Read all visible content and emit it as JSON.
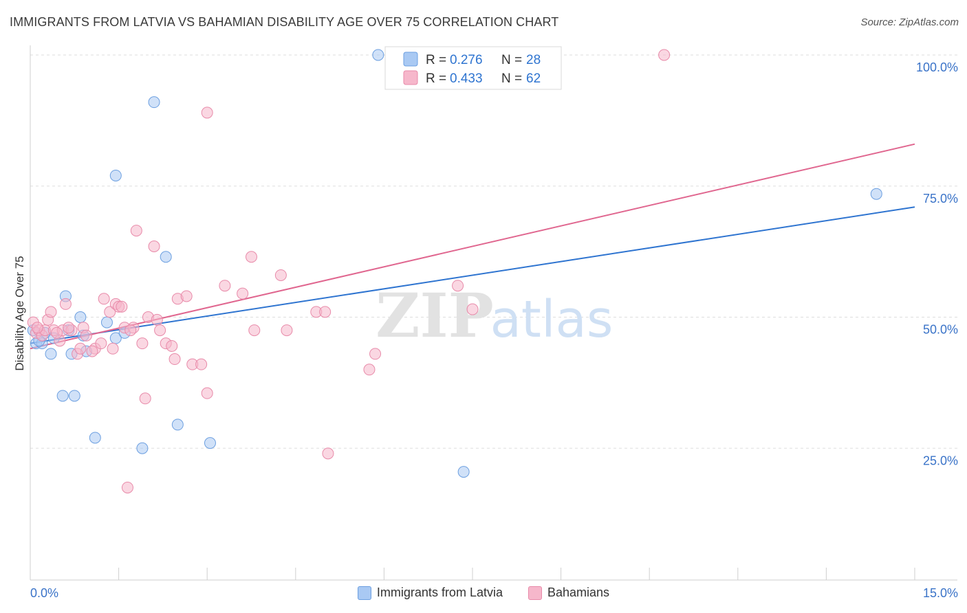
{
  "header": {
    "title": "IMMIGRANTS FROM LATVIA VS BAHAMIAN DISABILITY AGE OVER 75 CORRELATION CHART",
    "source": "Source: ZipAtlas.com"
  },
  "watermark": {
    "zip": "ZIP",
    "atlas": "atlas"
  },
  "colors": {
    "blue_fill": "#a9c9f3",
    "blue_stroke": "#6c9fe0",
    "blue_line": "#2e74d0",
    "pink_fill": "#f6b7cb",
    "pink_stroke": "#e88aa9",
    "pink_line": "#e0668f",
    "tick_label": "#3a73c8",
    "grid": "#dddddd"
  },
  "chart_data": {
    "type": "scatter",
    "title": "IMMIGRANTS FROM LATVIA VS BAHAMIAN DISABILITY AGE OVER 75 CORRELATION CHART",
    "xlabel": "",
    "ylabel": "Disability Age Over 75",
    "xlim": [
      0,
      15
    ],
    "ylim": [
      0,
      102
    ],
    "x_tick_labels": [
      {
        "value": 0,
        "label": "0.0%"
      },
      {
        "value": 15,
        "label": "15.0%"
      }
    ],
    "y_tick_labels": [
      {
        "value": 25,
        "label": "25.0%"
      },
      {
        "value": 50,
        "label": "50.0%"
      },
      {
        "value": 75,
        "label": "75.0%"
      },
      {
        "value": 100,
        "label": "100.0%"
      }
    ],
    "grid": true,
    "legend_position": "top-center",
    "series": [
      {
        "name": "Immigrants from Latvia",
        "color": "blue",
        "r_label": "R =",
        "r_value": "0.276",
        "n_label": "N =",
        "n_value": "28",
        "trend": [
          [
            0,
            45
          ],
          [
            15,
            71
          ]
        ],
        "points": [
          [
            0.05,
            47.5
          ],
          [
            0.1,
            45
          ],
          [
            0.2,
            45
          ],
          [
            0.25,
            47
          ],
          [
            0.35,
            43
          ],
          [
            0.4,
            46
          ],
          [
            0.55,
            35
          ],
          [
            0.6,
            54
          ],
          [
            0.65,
            47.5
          ],
          [
            0.7,
            43
          ],
          [
            0.75,
            35
          ],
          [
            0.85,
            50
          ],
          [
            0.9,
            46.5
          ],
          [
            0.95,
            43.5
          ],
          [
            1.1,
            27
          ],
          [
            1.3,
            49
          ],
          [
            1.45,
            46
          ],
          [
            1.45,
            77
          ],
          [
            1.6,
            47
          ],
          [
            1.9,
            25
          ],
          [
            2.1,
            91
          ],
          [
            2.3,
            61.5
          ],
          [
            2.5,
            29.5
          ],
          [
            3.05,
            26
          ],
          [
            5.9,
            100
          ],
          [
            7.35,
            20.5
          ],
          [
            14.35,
            73.5
          ],
          [
            0.15,
            45.5
          ]
        ]
      },
      {
        "name": "Bahamians",
        "color": "pink",
        "r_label": "R =",
        "r_value": "0.433",
        "n_label": "N =",
        "n_value": "62",
        "trend": [
          [
            0,
            44
          ],
          [
            15,
            83
          ]
        ],
        "points": [
          [
            0.05,
            49
          ],
          [
            0.1,
            47
          ],
          [
            0.15,
            47.5
          ],
          [
            0.2,
            46.5
          ],
          [
            0.25,
            47.5
          ],
          [
            0.3,
            49.5
          ],
          [
            0.35,
            51
          ],
          [
            0.4,
            47.5
          ],
          [
            0.5,
            45.5
          ],
          [
            0.55,
            47.5
          ],
          [
            0.6,
            52.5
          ],
          [
            0.7,
            47.5
          ],
          [
            0.8,
            43
          ],
          [
            0.85,
            44
          ],
          [
            0.9,
            48
          ],
          [
            0.95,
            46.5
          ],
          [
            1.1,
            44
          ],
          [
            1.2,
            45
          ],
          [
            1.25,
            53.5
          ],
          [
            1.35,
            51
          ],
          [
            1.4,
            44
          ],
          [
            1.45,
            52.5
          ],
          [
            1.5,
            52
          ],
          [
            1.55,
            52
          ],
          [
            1.6,
            48
          ],
          [
            1.65,
            17.5
          ],
          [
            1.75,
            48
          ],
          [
            1.8,
            66.5
          ],
          [
            1.9,
            45
          ],
          [
            1.95,
            34.5
          ],
          [
            2.0,
            50
          ],
          [
            2.1,
            63.5
          ],
          [
            2.15,
            49.5
          ],
          [
            2.3,
            45
          ],
          [
            2.4,
            44.5
          ],
          [
            2.45,
            42
          ],
          [
            2.5,
            53.5
          ],
          [
            2.65,
            54
          ],
          [
            2.75,
            41
          ],
          [
            2.9,
            41
          ],
          [
            3.0,
            89
          ],
          [
            3.0,
            35.5
          ],
          [
            3.3,
            56
          ],
          [
            3.6,
            54.5
          ],
          [
            3.75,
            61.5
          ],
          [
            3.8,
            47.5
          ],
          [
            4.25,
            58
          ],
          [
            4.35,
            47.5
          ],
          [
            4.85,
            51
          ],
          [
            5.0,
            51
          ],
          [
            5.05,
            24
          ],
          [
            5.75,
            40
          ],
          [
            5.85,
            43
          ],
          [
            7.25,
            56
          ],
          [
            7.5,
            51.5
          ],
          [
            10.75,
            100
          ],
          [
            0.12,
            48
          ],
          [
            0.45,
            47
          ],
          [
            1.05,
            43.5
          ],
          [
            2.2,
            47.5
          ],
          [
            0.65,
            48
          ],
          [
            1.7,
            47.5
          ]
        ]
      }
    ]
  }
}
